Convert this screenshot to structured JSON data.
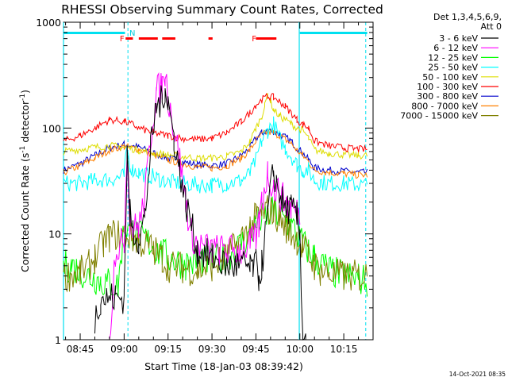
{
  "chart_data": {
    "type": "line",
    "title": "RHESSI Observing Summary Count Rates, Corrected",
    "xlabel": "Start Time (18-Jan-03 08:39:42)",
    "ylabel_main": "Corrected Count Rate (s",
    "ylabel_sup": "-1",
    "ylabel_tail": " detector",
    "ylabel_close": ")",
    "yscale": "log",
    "ylim": [
      1,
      1000
    ],
    "xlim_minutes": [
      -5.7,
      100
    ],
    "x_ticks": [
      {
        "m": 0,
        "label": "08:45"
      },
      {
        "m": 15,
        "label": "09:00"
      },
      {
        "m": 30,
        "label": "09:15"
      },
      {
        "m": 45,
        "label": "09:30"
      },
      {
        "m": 60,
        "label": "09:45"
      },
      {
        "m": 75,
        "label": "10:00"
      },
      {
        "m": 90,
        "label": "10:15"
      }
    ],
    "y_ticks": [
      {
        "v": 1,
        "label": "1"
      },
      {
        "v": 10,
        "label": "10"
      },
      {
        "v": 100,
        "label": "100"
      },
      {
        "v": 1000,
        "label": "1000"
      }
    ],
    "detectors_line1": "Det 1,3,4,5,6,9,",
    "detectors_line2": "Att 0",
    "series": [
      {
        "name": "3 - 6 keV",
        "color": "#000000",
        "x": [
          -5.7,
          3,
          5,
          7,
          9,
          12,
          15,
          16,
          17,
          18,
          20,
          22,
          24,
          26,
          28,
          29,
          30,
          32,
          34,
          36,
          38,
          40,
          45,
          50,
          55,
          57,
          58,
          59,
          60,
          61,
          62,
          64,
          66,
          67,
          68,
          69,
          70,
          72,
          74,
          75,
          76,
          77,
          78,
          80,
          82,
          85,
          88,
          92,
          95
        ],
        "y": [
          null,
          null,
          1.6,
          2.5,
          2.5,
          2.5,
          2.5,
          55,
          15,
          11,
          9,
          14,
          60,
          160,
          180,
          250,
          180,
          80,
          40,
          20,
          12,
          7,
          6,
          5,
          5,
          5,
          4.5,
          5,
          5,
          4,
          5,
          15,
          40,
          30,
          25,
          20,
          18,
          17,
          14,
          10,
          1.2,
          1.0,
          1.0,
          null,
          null,
          null,
          null,
          null,
          null
        ]
      },
      {
        "name": "6 - 12 keV",
        "color": "#ff00ff",
        "x": [
          -5.7,
          3,
          10,
          12,
          14,
          15,
          16,
          17,
          18,
          20,
          22,
          24,
          26,
          28,
          29,
          30,
          32,
          34,
          36,
          38,
          40,
          45,
          50,
          55,
          58,
          60,
          61,
          62,
          64,
          66,
          68,
          70,
          72,
          74,
          75
        ],
        "y": [
          null,
          null,
          1.0,
          7,
          8,
          9,
          70,
          14,
          11,
          12,
          20,
          80,
          220,
          250,
          330,
          200,
          100,
          50,
          20,
          10,
          8,
          7,
          7,
          7,
          8,
          9,
          12,
          20,
          38,
          28,
          24,
          20,
          18,
          16,
          14
        ]
      },
      {
        "name": "12 - 25 keV",
        "color": "#00ff00",
        "x": [
          -5.7,
          -3,
          0,
          3,
          5,
          7,
          10,
          13,
          15,
          18,
          20,
          22,
          24,
          26,
          28,
          30,
          33,
          36,
          40,
          45,
          50,
          55,
          58,
          60,
          62,
          64,
          66,
          68,
          70,
          72,
          74,
          76,
          78,
          80,
          85,
          90,
          95,
          98
        ],
        "y": [
          5,
          5,
          4.5,
          4,
          3.8,
          3.6,
          3.4,
          3.2,
          12,
          10,
          9.5,
          9,
          8,
          7,
          6.5,
          6,
          5.5,
          5.2,
          5.5,
          5.5,
          6,
          8,
          10,
          12,
          14,
          15,
          16,
          15,
          13,
          12,
          10,
          8,
          7,
          6,
          4.5,
          4,
          3.8,
          3.5
        ]
      },
      {
        "name": "25 - 50 keV",
        "color": "#00ffff",
        "x": [
          -5.7,
          0,
          5,
          10,
          13,
          15,
          16,
          17,
          18,
          20,
          23,
          26,
          30,
          35,
          40,
          45,
          50,
          55,
          58,
          60,
          62,
          64,
          66,
          68,
          70,
          72,
          74,
          76,
          78,
          80,
          82,
          85,
          90,
          95,
          98
        ],
        "y": [
          30,
          30,
          32,
          33,
          34,
          35,
          65,
          45,
          40,
          38,
          36,
          34,
          31,
          30,
          29,
          29,
          30,
          32,
          37,
          50,
          75,
          95,
          110,
          80,
          65,
          55,
          45,
          40,
          40,
          32,
          31,
          30,
          30,
          29,
          29
        ]
      },
      {
        "name": "50 - 100 keV",
        "color": "#dddd00",
        "x": [
          -5.7,
          0,
          5,
          10,
          15,
          20,
          25,
          30,
          35,
          40,
          45,
          50,
          55,
          58,
          60,
          62,
          63,
          64,
          65,
          66,
          68,
          70,
          72,
          74,
          76,
          78,
          80,
          85,
          90,
          95,
          98
        ],
        "y": [
          60,
          63,
          66,
          68,
          66,
          62,
          58,
          56,
          54,
          52,
          52,
          54,
          60,
          75,
          100,
          130,
          160,
          210,
          180,
          150,
          130,
          120,
          110,
          100,
          95,
          80,
          62,
          58,
          56,
          55,
          55
        ]
      },
      {
        "name": "100 - 300 keV",
        "color": "#ff0000",
        "x": [
          -5.7,
          0,
          5,
          10,
          15,
          18,
          20,
          25,
          30,
          35,
          40,
          45,
          50,
          55,
          58,
          60,
          62,
          64,
          66,
          68,
          70,
          72,
          74,
          76,
          78,
          80,
          85,
          90,
          95,
          98
        ],
        "y": [
          75,
          85,
          100,
          120,
          115,
          108,
          100,
          90,
          85,
          80,
          78,
          80,
          90,
          115,
          140,
          165,
          185,
          200,
          195,
          180,
          160,
          140,
          120,
          108,
          100,
          75,
          68,
          65,
          63,
          63
        ]
      },
      {
        "name": "300 - 800 keV",
        "color": "#0000cc",
        "x": [
          -5.7,
          0,
          5,
          10,
          15,
          20,
          25,
          30,
          35,
          40,
          45,
          50,
          55,
          58,
          60,
          62,
          64,
          66,
          68,
          70,
          72,
          74,
          76,
          78,
          80,
          85,
          90,
          95,
          98
        ],
        "y": [
          40,
          46,
          55,
          65,
          70,
          66,
          58,
          52,
          48,
          45,
          44,
          46,
          55,
          65,
          80,
          90,
          95,
          93,
          88,
          82,
          75,
          65,
          58,
          50,
          42,
          40,
          39,
          38,
          38
        ]
      },
      {
        "name": "800 - 7000 keV",
        "color": "#ff8000",
        "x": [
          -5.7,
          0,
          5,
          10,
          15,
          20,
          25,
          30,
          35,
          40,
          45,
          50,
          55,
          58,
          60,
          62,
          64,
          66,
          68,
          70,
          72,
          74,
          76,
          78,
          80,
          85,
          90,
          95,
          98
        ],
        "y": [
          38,
          44,
          52,
          62,
          67,
          63,
          56,
          50,
          46,
          43,
          42,
          44,
          52,
          62,
          76,
          86,
          92,
          90,
          85,
          78,
          72,
          62,
          55,
          48,
          40,
          38,
          37,
          36,
          36
        ]
      },
      {
        "name": "7000 - 15000 keV",
        "color": "#808000",
        "x": [
          -5.7,
          0,
          3,
          5,
          8,
          10,
          13,
          15,
          18,
          20,
          23,
          25,
          28,
          30,
          35,
          40,
          45,
          50,
          55,
          58,
          60,
          62,
          64,
          66,
          68,
          70,
          72,
          74,
          76,
          78,
          80,
          82,
          85,
          90,
          95,
          98
        ],
        "y": [
          4,
          4.3,
          5,
          6,
          8,
          9.5,
          10,
          9.8,
          9.2,
          8.5,
          7.8,
          7,
          6,
          5,
          4.8,
          4.5,
          5,
          6,
          9,
          12,
          14,
          15.5,
          17,
          16,
          14,
          12,
          10,
          9,
          7.5,
          6.2,
          5,
          4.5,
          4.2,
          4,
          4,
          4
        ]
      }
    ],
    "annotations": {
      "top_cyan_label": "N",
      "flare_label_1": "F",
      "flare_label_2": "F",
      "cyan_bars_minutes": [
        [
          -5.7,
          15.3
        ],
        [
          75,
          98
        ]
      ],
      "red_bars_minutes": [
        [
          15.5,
          18
        ],
        [
          20,
          26.5
        ],
        [
          28,
          32.5
        ],
        [
          43.8,
          45.2
        ],
        [
          60,
          67
        ]
      ],
      "vertical_dashed_minutes": [
        16.3,
        97.5
      ],
      "vertical_solid_minutes": [
        -5.7,
        74.8
      ]
    }
  },
  "footer": {
    "date_stamp": "14-Oct-2021 08:35"
  }
}
